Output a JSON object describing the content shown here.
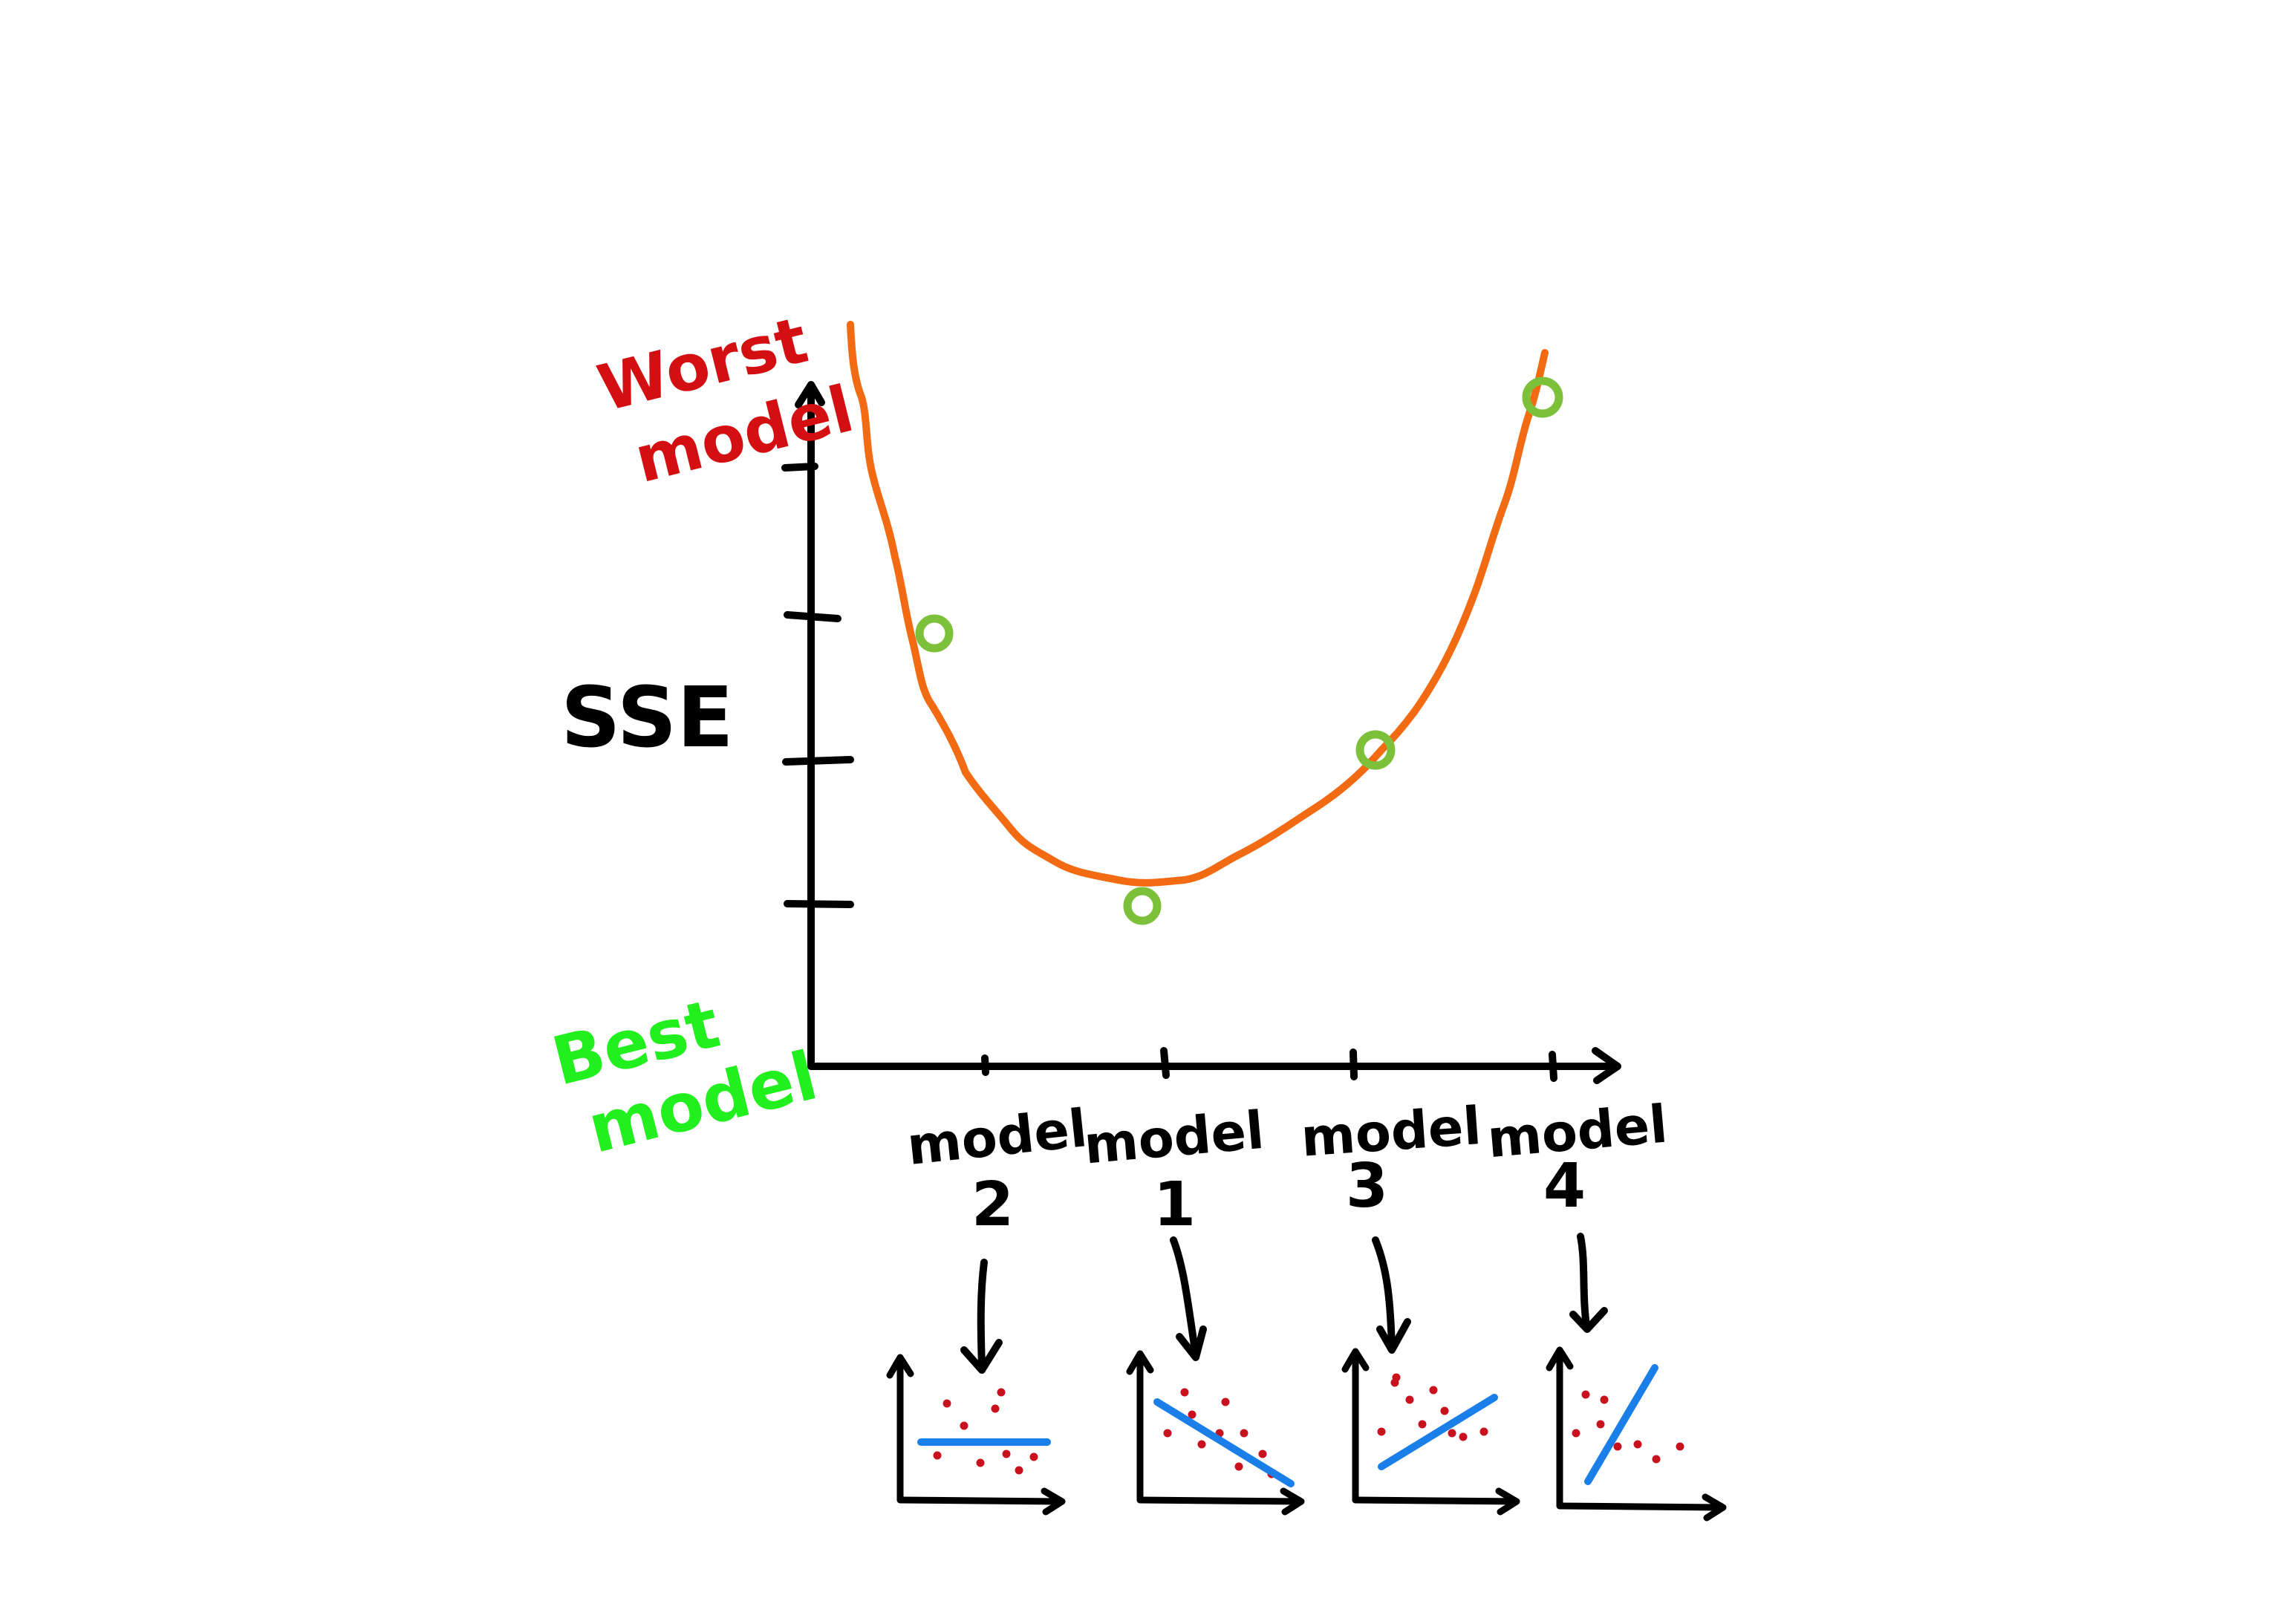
{
  "labels": {
    "y_axis": "SSE",
    "worst": [
      "Worst",
      "model"
    ],
    "best": [
      "Best",
      "model"
    ]
  },
  "models": [
    {
      "word": "model",
      "number": "2",
      "fit": "flat"
    },
    {
      "word": "model",
      "number": "1",
      "fit": "negative"
    },
    {
      "word": "model",
      "number": "3",
      "fit": "positive"
    },
    {
      "word": "model",
      "number": "4",
      "fit": "steep"
    }
  ],
  "colors": {
    "axis": "#000000",
    "curve": "#f26a12",
    "marker": "#7dc13a",
    "worst_label": "#d40f12",
    "best_label": "#22ef1e",
    "fit_line": "#1a7fe8",
    "scatter_point": "#c8111d"
  }
}
